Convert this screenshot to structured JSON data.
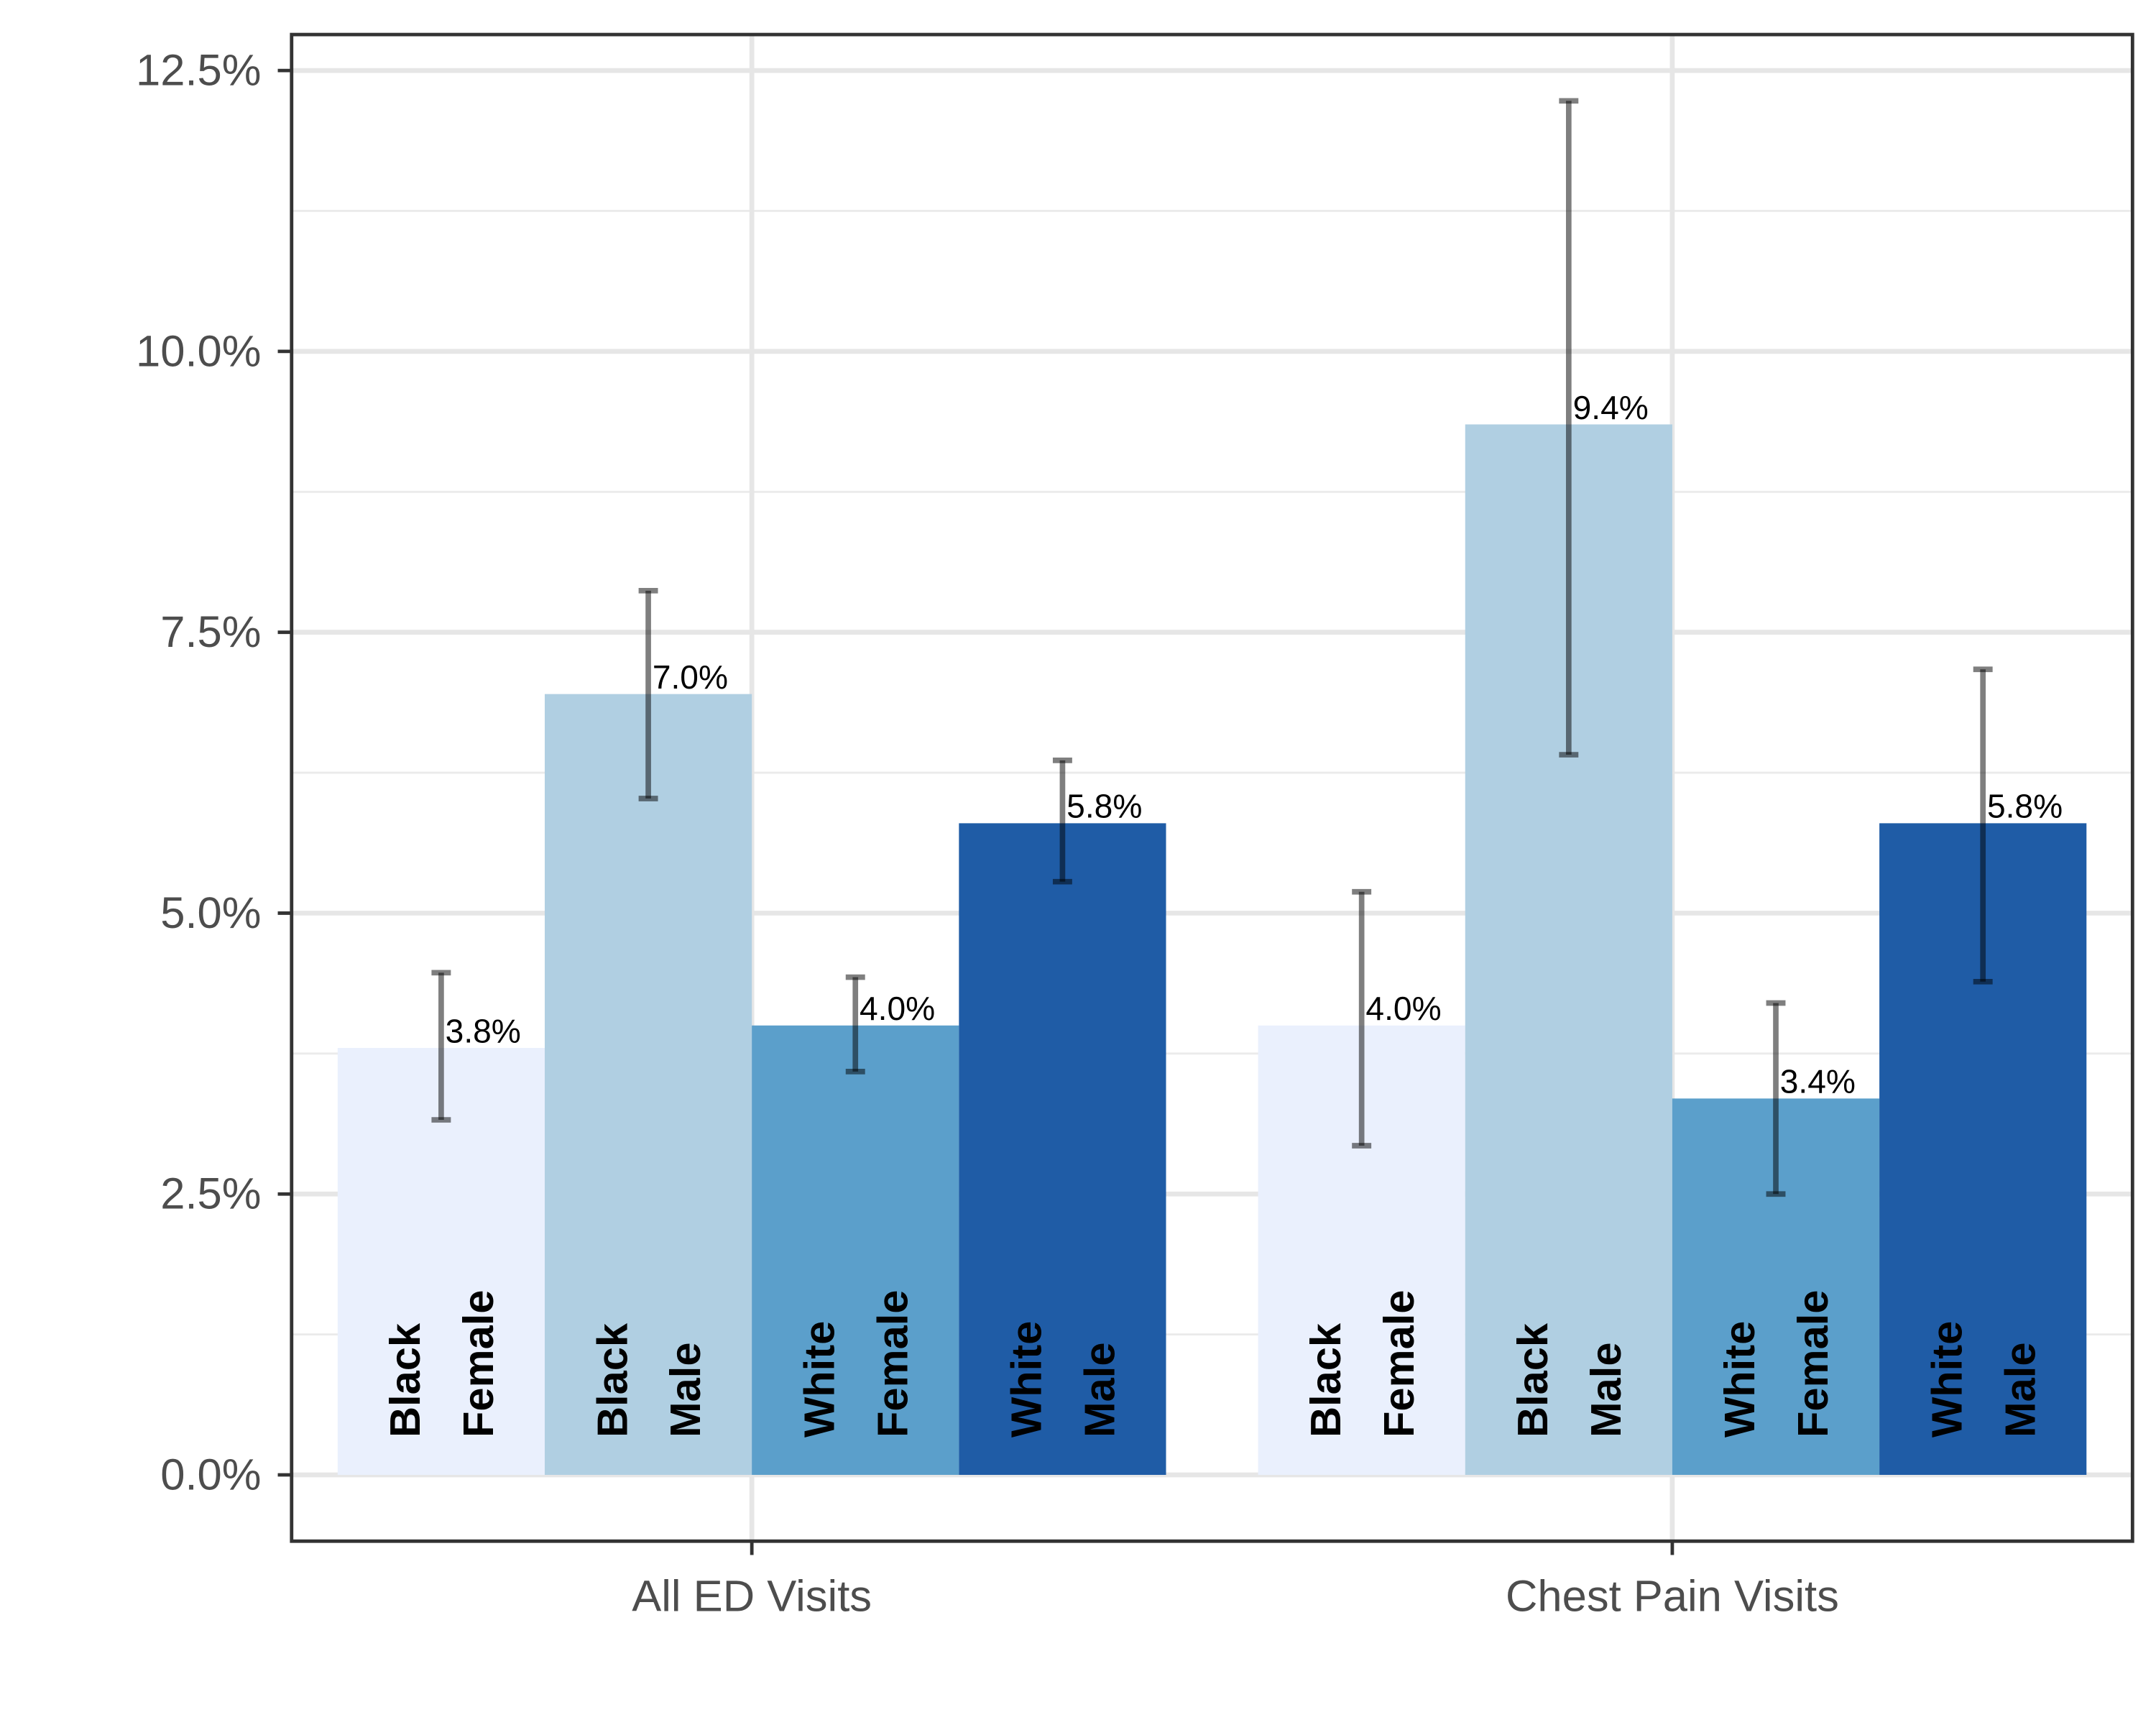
{
  "chart_data": {
    "type": "bar",
    "categories": [
      "All ED Visits",
      "Chest Pain Visits"
    ],
    "series": [
      {
        "name": "Black Female",
        "color": "#eaf0fd",
        "values": [
          3.8,
          4.0
        ],
        "value_labels": [
          "3.8%",
          "4.0%"
        ],
        "lower": [
          3.16,
          2.93
        ],
        "upper": [
          4.47,
          5.19
        ]
      },
      {
        "name": "Black Male",
        "color": "#b0cfe2",
        "values": [
          6.95,
          9.35
        ],
        "value_labels": [
          "7.0%",
          "9.4%"
        ],
        "lower": [
          6.02,
          6.41
        ],
        "upper": [
          7.87,
          12.23
        ]
      },
      {
        "name": "White Female",
        "color": "#5b9fcb",
        "values": [
          4.0,
          3.35
        ],
        "value_labels": [
          "4.0%",
          "3.4%"
        ],
        "lower": [
          3.59,
          2.5
        ],
        "upper": [
          4.43,
          4.2
        ]
      },
      {
        "name": "White Male",
        "color": "#1f5ca6",
        "values": [
          5.8,
          5.8
        ],
        "value_labels": [
          "5.8%",
          "5.8%"
        ],
        "lower": [
          5.28,
          4.39
        ],
        "upper": [
          6.36,
          7.17
        ]
      }
    ],
    "ylim": [
      -0.59,
      12.82
    ],
    "yticks": [
      {
        "value": 0,
        "label": "0.0%"
      },
      {
        "value": 2.5,
        "label": "2.5%"
      },
      {
        "value": 5,
        "label": "5.0%"
      },
      {
        "value": 7.5,
        "label": "7.5%"
      },
      {
        "value": 10,
        "label": "10.0%"
      },
      {
        "value": 12.5,
        "label": "12.5%"
      }
    ],
    "grid": true
  }
}
